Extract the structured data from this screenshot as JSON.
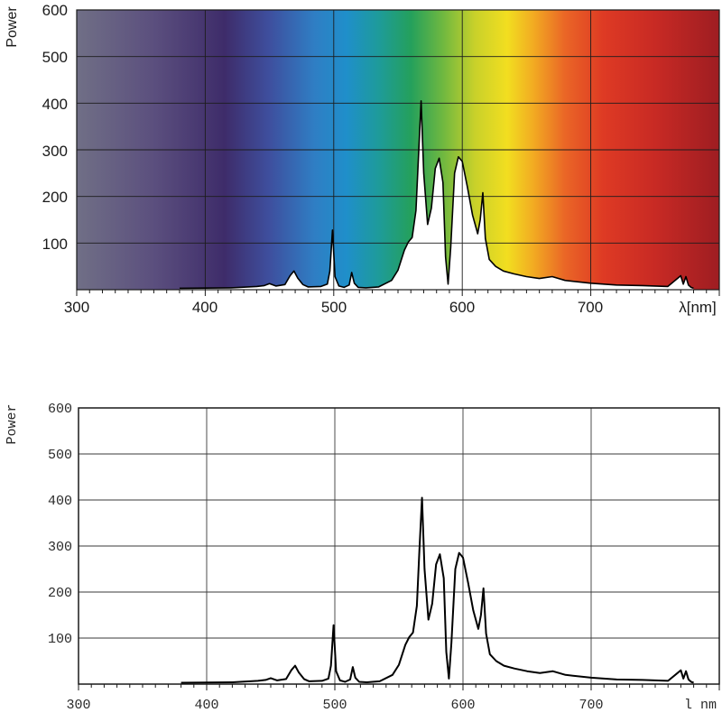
{
  "chart_data": [
    {
      "type": "area",
      "background": "visible-spectrum-gradient",
      "ylabel": "Power",
      "xlabel": "λ[nm]",
      "xlim": [
        300,
        800
      ],
      "ylim": [
        0,
        600
      ],
      "x_ticks": [
        "300",
        "400",
        "500",
        "600",
        "700"
      ],
      "y_ticks": [
        "100",
        "200",
        "300",
        "400",
        "500",
        "600"
      ],
      "grid": true,
      "fill_color": "#ffffff",
      "line_color": "#000000",
      "series": [
        {
          "x": [
            380,
            420,
            440,
            446,
            450,
            455,
            462,
            466,
            469,
            472,
            476,
            480,
            490,
            495,
            497,
            499,
            501,
            504,
            508,
            512,
            514,
            516,
            519,
            525,
            535,
            545,
            550,
            555,
            558,
            561,
            564,
            566,
            568,
            570,
            573,
            576,
            579,
            582,
            585,
            587,
            589,
            591,
            594,
            597,
            600,
            604,
            608,
            612,
            614,
            616,
            618,
            621,
            626,
            632,
            640,
            650,
            660,
            670,
            680,
            700,
            720,
            740,
            760,
            770,
            772,
            774,
            776,
            778,
            780
          ],
          "values": [
            3,
            4,
            7,
            9,
            13,
            8,
            11,
            30,
            40,
            25,
            11,
            6,
            7,
            12,
            40,
            128,
            28,
            8,
            5,
            10,
            37,
            14,
            5,
            4,
            6,
            20,
            42,
            85,
            102,
            112,
            170,
            290,
            405,
            250,
            140,
            175,
            260,
            282,
            230,
            70,
            12,
            90,
            250,
            285,
            275,
            220,
            160,
            120,
            150,
            208,
            110,
            65,
            50,
            40,
            34,
            28,
            24,
            28,
            20,
            14,
            10,
            9,
            7,
            30,
            12,
            28,
            10,
            5,
            3
          ]
        }
      ]
    },
    {
      "type": "line",
      "ylabel": "Power",
      "xlabel": "l nm",
      "xlim": [
        300,
        800
      ],
      "ylim": [
        0,
        600
      ],
      "x_ticks": [
        "300",
        "400",
        "500",
        "600",
        "700"
      ],
      "y_ticks": [
        "100",
        "200",
        "300",
        "400",
        "500",
        "600"
      ],
      "grid": true,
      "background_color": "#ffffff",
      "line_color": "#000000",
      "series": [
        {
          "x": [
            380,
            420,
            440,
            446,
            450,
            455,
            462,
            466,
            469,
            472,
            476,
            480,
            490,
            495,
            497,
            499,
            501,
            504,
            508,
            512,
            514,
            516,
            519,
            525,
            535,
            545,
            550,
            555,
            558,
            561,
            564,
            566,
            568,
            570,
            573,
            576,
            579,
            582,
            585,
            587,
            589,
            591,
            594,
            597,
            600,
            604,
            608,
            612,
            614,
            616,
            618,
            621,
            626,
            632,
            640,
            650,
            660,
            670,
            680,
            700,
            720,
            740,
            760,
            770,
            772,
            774,
            776,
            778,
            780
          ],
          "values": [
            3,
            4,
            7,
            9,
            13,
            8,
            11,
            30,
            40,
            25,
            11,
            6,
            7,
            12,
            40,
            128,
            28,
            8,
            5,
            10,
            37,
            14,
            5,
            4,
            6,
            20,
            42,
            85,
            102,
            112,
            170,
            290,
            405,
            250,
            140,
            175,
            260,
            282,
            230,
            70,
            12,
            90,
            250,
            285,
            275,
            220,
            160,
            120,
            150,
            208,
            110,
            65,
            50,
            40,
            34,
            28,
            24,
            28,
            20,
            14,
            10,
            9,
            7,
            30,
            12,
            28,
            10,
            5,
            3
          ]
        }
      ]
    }
  ]
}
